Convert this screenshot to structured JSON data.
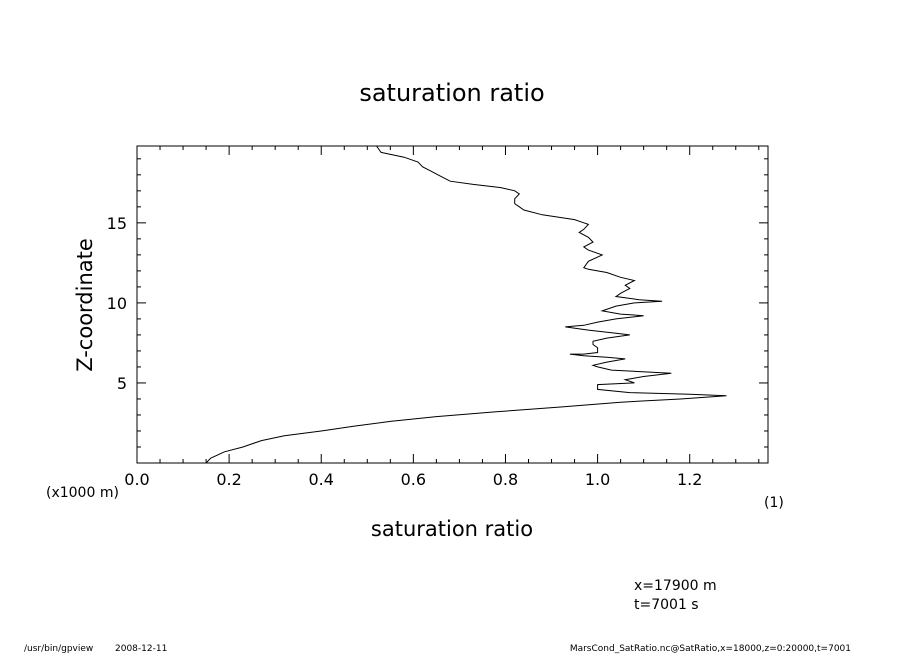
{
  "chart_data": {
    "type": "line",
    "title": "saturation ratio",
    "xlabel": "saturation ratio",
    "x_unit": "(1)",
    "ylabel": "Z-coordinate",
    "y_unit": "(x1000 m)",
    "xlim": [
      0.0,
      1.37
    ],
    "ylim": [
      0,
      19.8
    ],
    "x_ticks": [
      0.0,
      0.2,
      0.4,
      0.6,
      0.8,
      1.0,
      1.2
    ],
    "x_tick_labels": [
      "0.0",
      "0.2",
      "0.4",
      "0.6",
      "0.8",
      "1.0",
      "1.2"
    ],
    "y_ticks": [
      5,
      10,
      15
    ],
    "y_tick_labels": [
      "5",
      "10",
      "15"
    ],
    "grid": false,
    "series": [
      {
        "color": "#000000",
        "points": [
          [
            0.15,
            0.0
          ],
          [
            0.16,
            0.3
          ],
          [
            0.19,
            0.7
          ],
          [
            0.23,
            1.0
          ],
          [
            0.27,
            1.4
          ],
          [
            0.32,
            1.7
          ],
          [
            0.4,
            2.0
          ],
          [
            0.47,
            2.3
          ],
          [
            0.55,
            2.6
          ],
          [
            0.65,
            2.9
          ],
          [
            0.78,
            3.2
          ],
          [
            0.92,
            3.5
          ],
          [
            1.05,
            3.8
          ],
          [
            1.18,
            4.0
          ],
          [
            1.28,
            4.2
          ],
          [
            1.2,
            4.3
          ],
          [
            1.07,
            4.4
          ],
          [
            1.0,
            4.6
          ],
          [
            1.0,
            4.9
          ],
          [
            1.08,
            5.0
          ],
          [
            1.06,
            5.2
          ],
          [
            1.1,
            5.4
          ],
          [
            1.16,
            5.6
          ],
          [
            1.03,
            5.8
          ],
          [
            1.0,
            6.0
          ],
          [
            0.99,
            6.1
          ],
          [
            1.02,
            6.3
          ],
          [
            1.06,
            6.5
          ],
          [
            1.02,
            6.6
          ],
          [
            0.97,
            6.7
          ],
          [
            0.94,
            6.8
          ],
          [
            0.97,
            6.8
          ],
          [
            1.0,
            6.9
          ],
          [
            1.0,
            7.0
          ],
          [
            1.0,
            7.2
          ],
          [
            0.99,
            7.4
          ],
          [
            0.99,
            7.6
          ],
          [
            1.02,
            7.8
          ],
          [
            1.07,
            8.0
          ],
          [
            1.04,
            8.1
          ],
          [
            0.98,
            8.3
          ],
          [
            0.93,
            8.5
          ],
          [
            0.97,
            8.6
          ],
          [
            1.0,
            8.8
          ],
          [
            1.04,
            9.0
          ],
          [
            1.1,
            9.2
          ],
          [
            1.05,
            9.3
          ],
          [
            1.01,
            9.5
          ],
          [
            1.04,
            9.8
          ],
          [
            1.08,
            10.0
          ],
          [
            1.14,
            10.1
          ],
          [
            1.09,
            10.2
          ],
          [
            1.04,
            10.4
          ],
          [
            1.05,
            10.6
          ],
          [
            1.07,
            10.9
          ],
          [
            1.06,
            11.1
          ],
          [
            1.08,
            11.4
          ],
          [
            1.05,
            11.6
          ],
          [
            1.02,
            11.9
          ],
          [
            0.98,
            12.1
          ],
          [
            0.97,
            12.2
          ],
          [
            0.98,
            12.6
          ],
          [
            1.01,
            13.0
          ],
          [
            0.98,
            13.3
          ],
          [
            0.97,
            13.5
          ],
          [
            0.99,
            13.8
          ],
          [
            0.98,
            14.1
          ],
          [
            0.96,
            14.4
          ],
          [
            0.97,
            14.6
          ],
          [
            0.98,
            14.9
          ],
          [
            0.97,
            15.0
          ],
          [
            0.95,
            15.2
          ],
          [
            0.88,
            15.5
          ],
          [
            0.84,
            15.8
          ],
          [
            0.83,
            16.0
          ],
          [
            0.82,
            16.2
          ],
          [
            0.82,
            16.5
          ],
          [
            0.83,
            16.8
          ],
          [
            0.82,
            17.0
          ],
          [
            0.79,
            17.2
          ],
          [
            0.73,
            17.4
          ],
          [
            0.68,
            17.6
          ],
          [
            0.66,
            17.9
          ],
          [
            0.64,
            18.2
          ],
          [
            0.62,
            18.5
          ],
          [
            0.61,
            18.8
          ],
          [
            0.58,
            19.1
          ],
          [
            0.53,
            19.4
          ],
          [
            0.52,
            19.8
          ]
        ]
      }
    ]
  },
  "annotations": {
    "position": "x=17900 m",
    "time": "t=7001 s"
  },
  "footer": {
    "program": "/usr/bin/gpview",
    "date": "2008-12-11",
    "source": "MarsCond_SatRatio.nc@SatRatio,x=18000,z=0:20000,t=7001"
  }
}
